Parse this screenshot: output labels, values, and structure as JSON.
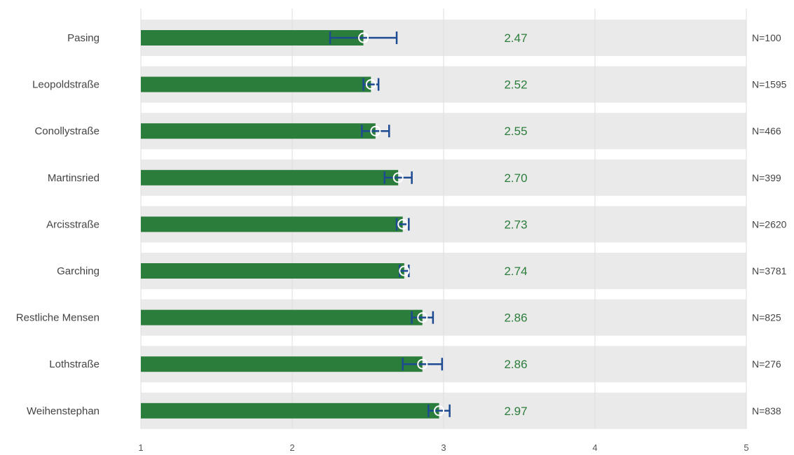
{
  "chart_data": {
    "type": "bar",
    "orientation": "horizontal",
    "title": "",
    "xlabel": "",
    "ylabel": "",
    "xlim": [
      1,
      5
    ],
    "x_ticks": [
      "1",
      "2",
      "3",
      "4",
      "5"
    ],
    "grid": true,
    "categories": [
      "Pasing",
      "Leopoldstraße",
      "Conollystraße",
      "Martinsried",
      "Arcisstraße",
      "Garching",
      "Restliche Mensen",
      "Lothstraße",
      "Weihenstephan"
    ],
    "values": [
      2.47,
      2.52,
      2.55,
      2.7,
      2.73,
      2.74,
      2.86,
      2.86,
      2.97
    ],
    "value_labels": [
      "2.47",
      "2.52",
      "2.55",
      "2.70",
      "2.73",
      "2.74",
      "2.86",
      "2.86",
      "2.97"
    ],
    "error_low": [
      2.25,
      2.47,
      2.46,
      2.61,
      2.69,
      2.71,
      2.79,
      2.73,
      2.9
    ],
    "error_high": [
      2.69,
      2.57,
      2.64,
      2.79,
      2.77,
      2.77,
      2.93,
      2.99,
      3.04
    ],
    "n_labels": [
      "N=100",
      "N=1595",
      "N=466",
      "N=399",
      "N=2620",
      "N=3781",
      "N=825",
      "N=276",
      "N=838"
    ],
    "colors": {
      "bar": "#2b7d3b",
      "value_text": "#2b7d3b",
      "error": "#1d4a91",
      "row_bg": "#eaeaea",
      "grid": "#ffffff"
    }
  }
}
